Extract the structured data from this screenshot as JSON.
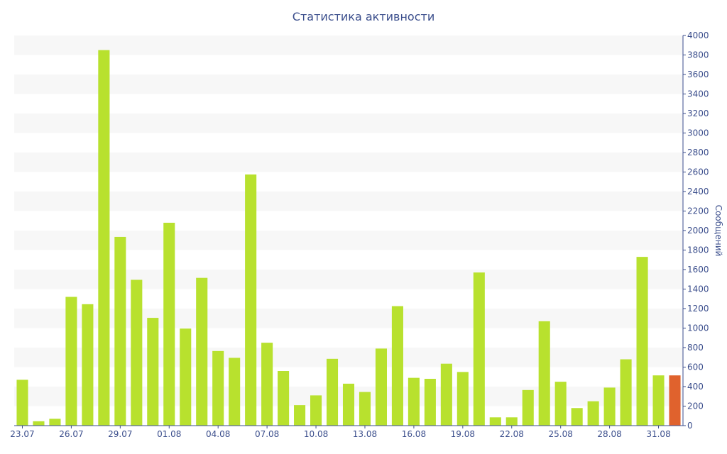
{
  "chart_data": {
    "type": "bar",
    "title": "Статистика активности",
    "ylabel": "Сообщений",
    "xlabel": "",
    "ylim": [
      0,
      4000
    ],
    "ytick_step": 200,
    "categories": [
      "23.07",
      "24.07",
      "25.07",
      "26.07",
      "27.07",
      "28.07",
      "29.07",
      "30.07",
      "31.07",
      "01.08",
      "02.08",
      "03.08",
      "04.08",
      "05.08",
      "06.08",
      "07.08",
      "08.08",
      "09.08",
      "10.08",
      "11.08",
      "12.08",
      "13.08",
      "14.08",
      "15.08",
      "16.08",
      "17.08",
      "18.08",
      "19.08",
      "20.08",
      "21.08",
      "22.08",
      "23.08",
      "24.08",
      "25.08",
      "26.08",
      "27.08",
      "28.08",
      "29.08",
      "30.08",
      "31.08",
      "01.09"
    ],
    "xtick_labels": [
      "23.07",
      "26.07",
      "29.07",
      "01.08",
      "04.08",
      "07.08",
      "10.08",
      "13.08",
      "16.08",
      "19.08",
      "22.08",
      "25.08",
      "28.08",
      "31.08"
    ],
    "values": [
      470,
      45,
      70,
      1320,
      1245,
      3850,
      1935,
      1495,
      1105,
      2080,
      995,
      1515,
      765,
      695,
      2575,
      850,
      560,
      210,
      310,
      685,
      430,
      345,
      790,
      1225,
      490,
      480,
      635,
      550,
      1570,
      85,
      85,
      365,
      1070,
      450,
      180,
      250,
      390,
      680,
      1730,
      515,
      515
    ],
    "bar_color": "#b8e12e",
    "highlight_color": "#e0622d",
    "highlight_index": 40,
    "band_color": "#f7f7f7",
    "axis_color": "#3b4e8c",
    "grid": true,
    "yaxis_position": "right"
  }
}
